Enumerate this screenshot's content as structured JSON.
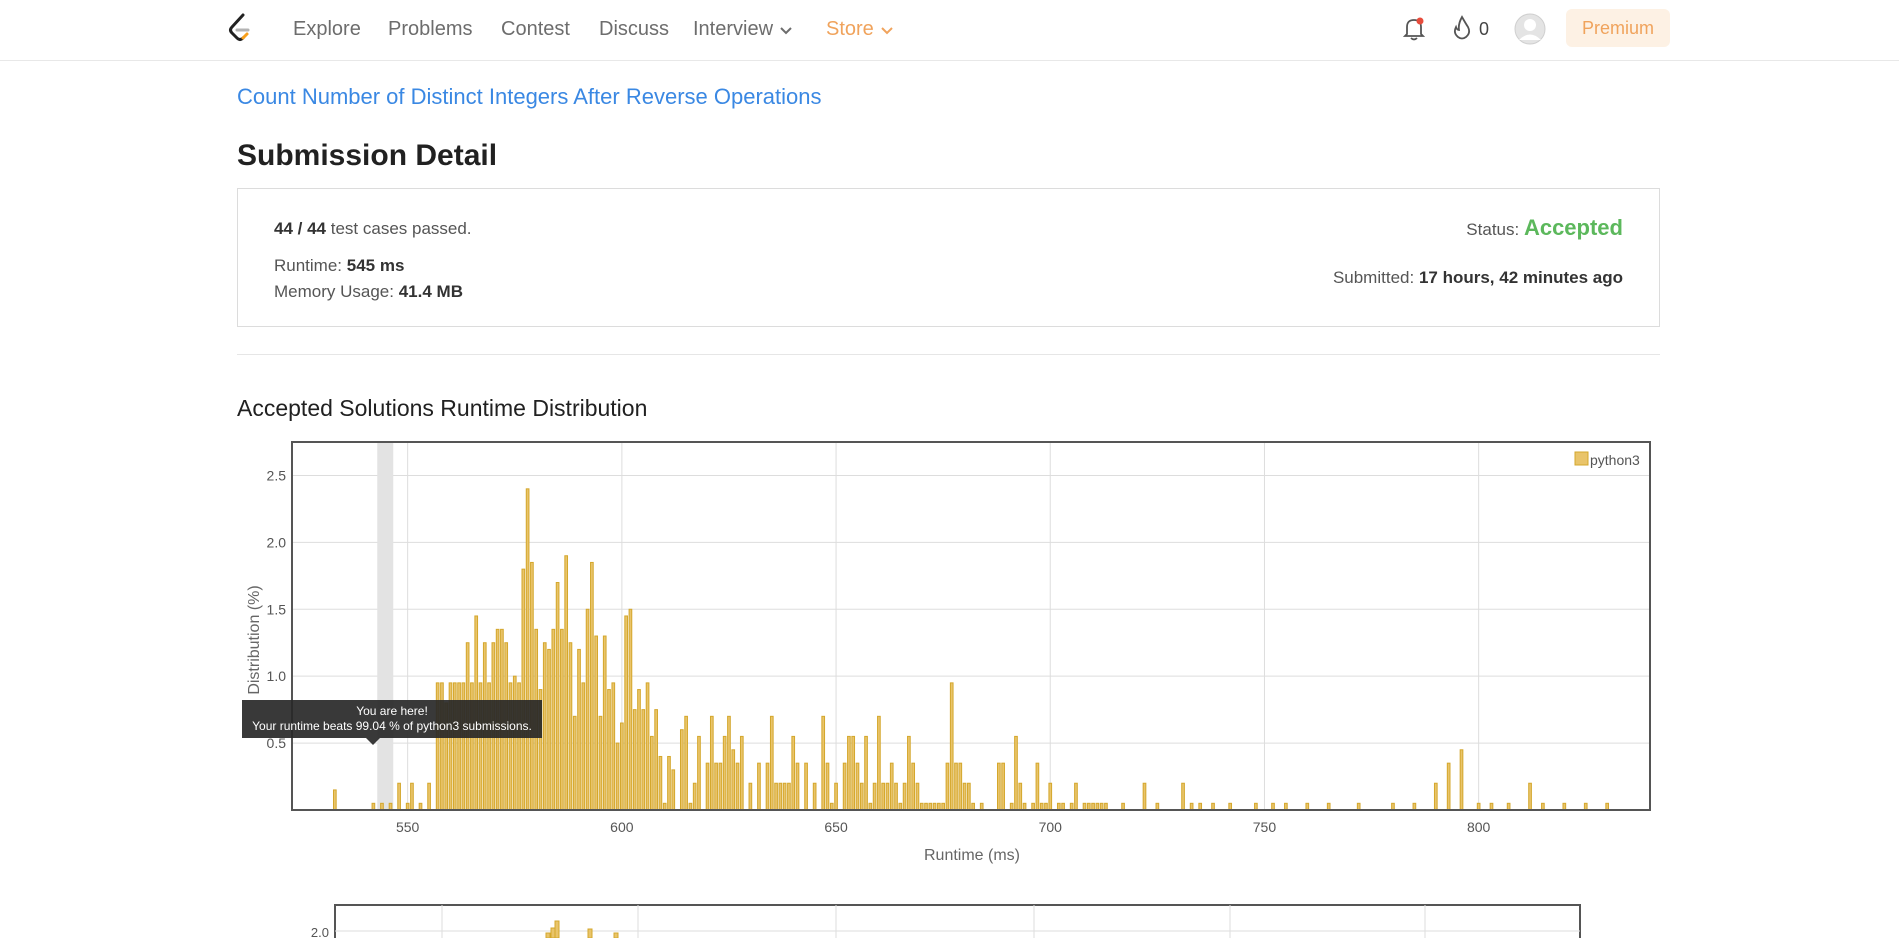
{
  "nav": {
    "items": [
      {
        "label": "Explore"
      },
      {
        "label": "Problems"
      },
      {
        "label": "Contest"
      },
      {
        "label": "Discuss"
      },
      {
        "label": "Interview"
      },
      {
        "label": "Store"
      }
    ],
    "streak_count": "0",
    "premium_label": "Premium",
    "colors": {
      "store": "#f0a35c",
      "link": "#3a88e3",
      "accepted": "#5cb85c"
    }
  },
  "problem_link": "Count Number of Distinct Integers After Reverse Operations",
  "page_title": "Submission Detail",
  "detail": {
    "cases_passed": "44 / 44",
    "cases_suffix": "test cases passed.",
    "status_label": "Status:",
    "status_value": "Accepted",
    "runtime_label": "Runtime:",
    "runtime_value": "545 ms",
    "memory_label": "Memory Usage:",
    "memory_value": "41.4 MB",
    "submitted_label": "Submitted:",
    "submitted_value": "17 hours, 42 minutes ago"
  },
  "section_title": "Accepted Solutions Runtime Distribution",
  "tooltip": {
    "line1": "You are here!",
    "line2": "Your runtime beats 99.04 % of python3 submissions."
  },
  "chart_data": {
    "type": "bar",
    "xlabel": "Runtime (ms)",
    "ylabel": "Distribution (%)",
    "xlim": [
      523,
      840
    ],
    "ylim": [
      0,
      2.75
    ],
    "xticks": [
      550,
      600,
      650,
      700,
      750,
      800
    ],
    "yticks": [
      0.5,
      1.0,
      1.5,
      2.0,
      2.5
    ],
    "grid": true,
    "legend": "top-right",
    "series_name": "python3",
    "bar_color": "#e9c46a",
    "bar_stroke": "#d4a72c",
    "highlight_x": 545,
    "points": [
      [
        533,
        0.15
      ],
      [
        542,
        0.05
      ],
      [
        544,
        0.05
      ],
      [
        546,
        0.05
      ],
      [
        548,
        0.2
      ],
      [
        550,
        0.05
      ],
      [
        551,
        0.2
      ],
      [
        553,
        0.05
      ],
      [
        555,
        0.2
      ],
      [
        557,
        0.95
      ],
      [
        558,
        0.95
      ],
      [
        559,
        0.8
      ],
      [
        560,
        0.95
      ],
      [
        561,
        0.95
      ],
      [
        562,
        0.95
      ],
      [
        563,
        0.95
      ],
      [
        564,
        1.25
      ],
      [
        565,
        0.95
      ],
      [
        566,
        1.45
      ],
      [
        567,
        0.95
      ],
      [
        568,
        1.25
      ],
      [
        569,
        0.95
      ],
      [
        570,
        1.25
      ],
      [
        571,
        1.35
      ],
      [
        572,
        1.35
      ],
      [
        573,
        1.25
      ],
      [
        574,
        0.95
      ],
      [
        575,
        1.0
      ],
      [
        576,
        0.95
      ],
      [
        577,
        1.8
      ],
      [
        578,
        2.4
      ],
      [
        579,
        1.85
      ],
      [
        580,
        1.35
      ],
      [
        581,
        0.9
      ],
      [
        582,
        1.25
      ],
      [
        583,
        1.2
      ],
      [
        584,
        1.35
      ],
      [
        585,
        1.7
      ],
      [
        586,
        1.35
      ],
      [
        587,
        1.9
      ],
      [
        588,
        1.25
      ],
      [
        589,
        0.7
      ],
      [
        590,
        1.2
      ],
      [
        591,
        0.95
      ],
      [
        592,
        1.5
      ],
      [
        593,
        1.85
      ],
      [
        594,
        1.3
      ],
      [
        595,
        0.7
      ],
      [
        596,
        1.3
      ],
      [
        597,
        0.9
      ],
      [
        598,
        0.95
      ],
      [
        599,
        0.5
      ],
      [
        600,
        0.65
      ],
      [
        601,
        1.45
      ],
      [
        602,
        1.5
      ],
      [
        603,
        0.75
      ],
      [
        604,
        0.9
      ],
      [
        605,
        0.75
      ],
      [
        606,
        0.95
      ],
      [
        607,
        0.55
      ],
      [
        608,
        0.75
      ],
      [
        609,
        0.4
      ],
      [
        610,
        0.05
      ],
      [
        611,
        0.4
      ],
      [
        612,
        0.3
      ],
      [
        614,
        0.6
      ],
      [
        615,
        0.7
      ],
      [
        616,
        0.05
      ],
      [
        617,
        0.2
      ],
      [
        618,
        0.55
      ],
      [
        620,
        0.35
      ],
      [
        621,
        0.7
      ],
      [
        622,
        0.35
      ],
      [
        623,
        0.35
      ],
      [
        624,
        0.55
      ],
      [
        625,
        0.7
      ],
      [
        626,
        0.45
      ],
      [
        627,
        0.35
      ],
      [
        628,
        0.55
      ],
      [
        630,
        0.2
      ],
      [
        632,
        0.35
      ],
      [
        634,
        0.35
      ],
      [
        635,
        0.7
      ],
      [
        636,
        0.2
      ],
      [
        637,
        0.2
      ],
      [
        638,
        0.2
      ],
      [
        639,
        0.2
      ],
      [
        640,
        0.55
      ],
      [
        641,
        0.35
      ],
      [
        643,
        0.35
      ],
      [
        645,
        0.2
      ],
      [
        647,
        0.7
      ],
      [
        648,
        0.35
      ],
      [
        649,
        0.05
      ],
      [
        650,
        0.2
      ],
      [
        652,
        0.35
      ],
      [
        653,
        0.55
      ],
      [
        654,
        0.55
      ],
      [
        655,
        0.35
      ],
      [
        656,
        0.2
      ],
      [
        657,
        0.55
      ],
      [
        658,
        0.05
      ],
      [
        659,
        0.2
      ],
      [
        660,
        0.7
      ],
      [
        661,
        0.2
      ],
      [
        662,
        0.2
      ],
      [
        663,
        0.35
      ],
      [
        664,
        0.2
      ],
      [
        665,
        0.05
      ],
      [
        666,
        0.2
      ],
      [
        667,
        0.55
      ],
      [
        668,
        0.35
      ],
      [
        669,
        0.2
      ],
      [
        670,
        0.05
      ],
      [
        671,
        0.05
      ],
      [
        672,
        0.05
      ],
      [
        673,
        0.05
      ],
      [
        674,
        0.05
      ],
      [
        675,
        0.05
      ],
      [
        676,
        0.35
      ],
      [
        677,
        0.95
      ],
      [
        678,
        0.35
      ],
      [
        679,
        0.35
      ],
      [
        680,
        0.2
      ],
      [
        681,
        0.2
      ],
      [
        682,
        0.05
      ],
      [
        684,
        0.05
      ],
      [
        688,
        0.35
      ],
      [
        689,
        0.35
      ],
      [
        691,
        0.05
      ],
      [
        692,
        0.55
      ],
      [
        693,
        0.2
      ],
      [
        694,
        0.05
      ],
      [
        696,
        0.05
      ],
      [
        697,
        0.35
      ],
      [
        698,
        0.05
      ],
      [
        699,
        0.05
      ],
      [
        700,
        0.2
      ],
      [
        702,
        0.05
      ],
      [
        703,
        0.05
      ],
      [
        705,
        0.05
      ],
      [
        706,
        0.2
      ],
      [
        708,
        0.05
      ],
      [
        709,
        0.05
      ],
      [
        710,
        0.05
      ],
      [
        711,
        0.05
      ],
      [
        712,
        0.05
      ],
      [
        713,
        0.05
      ],
      [
        717,
        0.05
      ],
      [
        722,
        0.2
      ],
      [
        725,
        0.05
      ],
      [
        731,
        0.2
      ],
      [
        733,
        0.05
      ],
      [
        735,
        0.05
      ],
      [
        738,
        0.05
      ],
      [
        742,
        0.05
      ],
      [
        748,
        0.05
      ],
      [
        752,
        0.05
      ],
      [
        755,
        0.05
      ],
      [
        760,
        0.05
      ],
      [
        765,
        0.05
      ],
      [
        772,
        0.05
      ],
      [
        780,
        0.05
      ],
      [
        785,
        0.05
      ],
      [
        790,
        0.2
      ],
      [
        793,
        0.35
      ],
      [
        796,
        0.45
      ],
      [
        800,
        0.05
      ],
      [
        803,
        0.05
      ],
      [
        807,
        0.05
      ],
      [
        812,
        0.2
      ],
      [
        815,
        0.05
      ],
      [
        820,
        0.05
      ],
      [
        825,
        0.05
      ],
      [
        830,
        0.05
      ]
    ]
  },
  "second_chart": {
    "first_ytick": "2.0"
  }
}
